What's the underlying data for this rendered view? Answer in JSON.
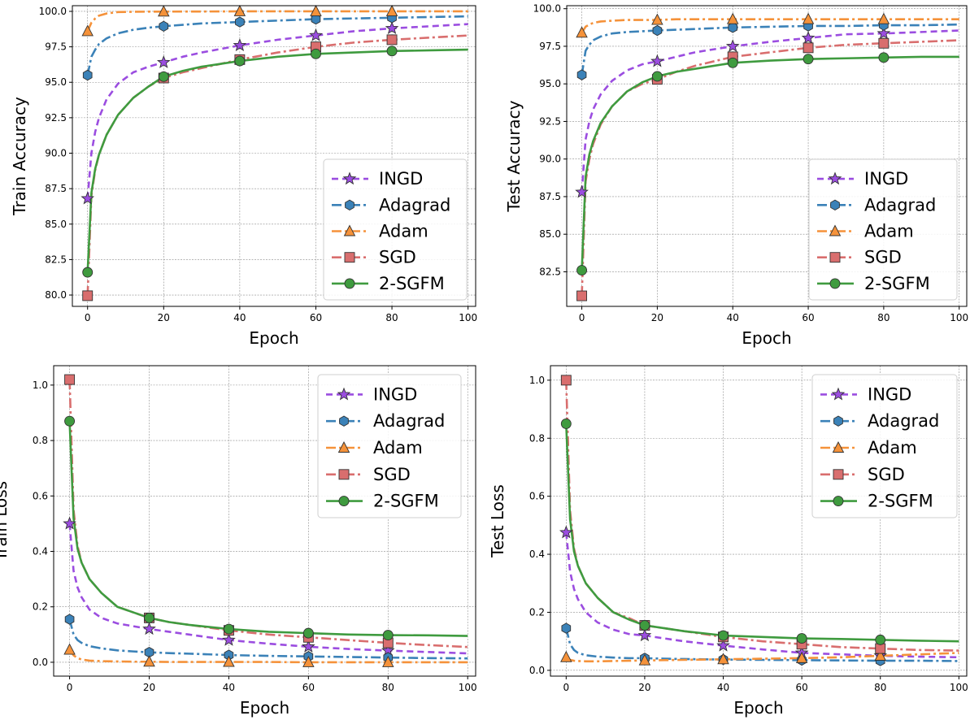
{
  "series_styles": [
    {
      "name": "INGD",
      "color": "#9b4de0",
      "dash": "8,5",
      "marker": "star"
    },
    {
      "name": "Adagrad",
      "color": "#3b82b8",
      "dash": "12,4,3,4",
      "marker": "hexagon"
    },
    {
      "name": "Adam",
      "color": "#f5923a",
      "dash": "12,4,3,4",
      "marker": "triangle"
    },
    {
      "name": "SGD",
      "color": "#d96e6e",
      "dash": "12,4,3,4",
      "marker": "square"
    },
    {
      "name": "2-SGFM",
      "color": "#3f9b3f",
      "dash": "",
      "marker": "circle"
    }
  ],
  "chart_data": [
    {
      "type": "line",
      "xlabel": "Epoch",
      "ylabel": "Train Accuracy",
      "xlim": [
        -4,
        102
      ],
      "ylim": [
        79.2,
        100.4
      ],
      "xticks": [
        0,
        20,
        40,
        60,
        80,
        100
      ],
      "yticks": [
        80.0,
        82.5,
        85.0,
        87.5,
        90.0,
        92.5,
        95.0,
        97.5,
        100.0
      ],
      "tick_decimals": 1,
      "grid": true,
      "legend": "bottom-right",
      "x": [
        0,
        1,
        2,
        3,
        5,
        8,
        12,
        16,
        20,
        25,
        30,
        40,
        50,
        60,
        70,
        80,
        90,
        100
      ],
      "markers_x": [
        0,
        20,
        40,
        60,
        80
      ],
      "series": [
        {
          "name": "INGD",
          "values": [
            86.8,
            90.0,
            91.5,
            92.5,
            93.8,
            94.9,
            95.7,
            96.1,
            96.4,
            96.8,
            97.1,
            97.6,
            98.0,
            98.3,
            98.6,
            98.8,
            98.95,
            99.1
          ]
        },
        {
          "name": "Adagrad",
          "values": [
            95.5,
            96.8,
            97.3,
            97.7,
            98.1,
            98.45,
            98.7,
            98.85,
            98.95,
            99.05,
            99.15,
            99.25,
            99.35,
            99.45,
            99.5,
            99.55,
            99.6,
            99.65
          ]
        },
        {
          "name": "Adam",
          "values": [
            98.6,
            99.2,
            99.5,
            99.7,
            99.85,
            99.95,
            99.97,
            99.98,
            99.98,
            99.99,
            99.99,
            100.0,
            100.0,
            100.0,
            100.0,
            100.0,
            100.0,
            100.0
          ]
        },
        {
          "name": "SGD",
          "values": [
            79.95,
            87.0,
            88.8,
            89.9,
            91.3,
            92.7,
            93.9,
            94.7,
            95.3,
            95.7,
            96.0,
            96.6,
            97.1,
            97.5,
            97.8,
            98.0,
            98.15,
            98.3
          ]
        },
        {
          "name": "2-SGFM",
          "values": [
            81.6,
            87.2,
            88.9,
            89.9,
            91.3,
            92.7,
            93.9,
            94.7,
            95.4,
            95.8,
            96.1,
            96.5,
            96.8,
            97.0,
            97.1,
            97.2,
            97.25,
            97.3
          ]
        }
      ]
    },
    {
      "type": "line",
      "xlabel": "Epoch",
      "ylabel": "Test Accuracy",
      "xlim": [
        -4,
        102
      ],
      "ylim": [
        80.2,
        100.2
      ],
      "xticks": [
        0,
        20,
        40,
        60,
        80,
        100
      ],
      "yticks": [
        82.5,
        85.0,
        87.5,
        90.0,
        92.5,
        95.0,
        97.5,
        100.0
      ],
      "tick_decimals": 1,
      "grid": true,
      "legend": "bottom-right",
      "x": [
        0,
        1,
        2,
        3,
        5,
        8,
        12,
        16,
        20,
        25,
        30,
        40,
        50,
        60,
        70,
        80,
        90,
        100
      ],
      "markers_x": [
        0,
        20,
        40,
        60,
        80
      ],
      "series": [
        {
          "name": "INGD",
          "values": [
            87.8,
            91.3,
            92.5,
            93.3,
            94.3,
            95.2,
            95.9,
            96.3,
            96.5,
            96.8,
            97.1,
            97.5,
            97.8,
            98.05,
            98.3,
            98.35,
            98.45,
            98.55
          ]
        },
        {
          "name": "Adagrad",
          "values": [
            95.6,
            97.2,
            97.6,
            97.9,
            98.15,
            98.35,
            98.45,
            98.5,
            98.55,
            98.6,
            98.65,
            98.75,
            98.8,
            98.85,
            98.85,
            98.9,
            98.9,
            98.95
          ]
        },
        {
          "name": "Adam",
          "values": [
            98.4,
            98.8,
            98.95,
            99.05,
            99.15,
            99.2,
            99.25,
            99.25,
            99.25,
            99.3,
            99.3,
            99.3,
            99.3,
            99.3,
            99.3,
            99.3,
            99.3,
            99.3
          ]
        },
        {
          "name": "SGD",
          "values": [
            80.9,
            88.5,
            90.0,
            91.0,
            92.3,
            93.5,
            94.5,
            95.0,
            95.3,
            95.8,
            96.2,
            96.8,
            97.1,
            97.4,
            97.6,
            97.7,
            97.8,
            97.9
          ]
        },
        {
          "name": "2-SGFM",
          "values": [
            82.6,
            88.8,
            90.3,
            91.2,
            92.4,
            93.5,
            94.5,
            95.1,
            95.5,
            95.8,
            96.0,
            96.4,
            96.55,
            96.65,
            96.7,
            96.75,
            96.8,
            96.8
          ]
        }
      ]
    },
    {
      "type": "line",
      "xlabel": "Epoch",
      "ylabel": "Train Loss",
      "xlim": [
        -4,
        102
      ],
      "ylim": [
        -0.05,
        1.07
      ],
      "xticks": [
        0,
        20,
        40,
        60,
        80,
        100
      ],
      "yticks": [
        0.0,
        0.2,
        0.4,
        0.6,
        0.8,
        1.0
      ],
      "tick_decimals": 1,
      "grid": true,
      "legend": "top-right",
      "x": [
        0,
        1,
        2,
        3,
        5,
        8,
        12,
        16,
        20,
        25,
        30,
        40,
        50,
        60,
        70,
        80,
        90,
        100
      ],
      "markers_x": [
        0,
        20,
        40,
        60,
        80
      ],
      "series": [
        {
          "name": "INGD",
          "values": [
            0.5,
            0.33,
            0.27,
            0.235,
            0.19,
            0.16,
            0.14,
            0.13,
            0.12,
            0.11,
            0.1,
            0.08,
            0.067,
            0.056,
            0.048,
            0.042,
            0.037,
            0.032
          ]
        },
        {
          "name": "Adagrad",
          "values": [
            0.155,
            0.1,
            0.08,
            0.07,
            0.058,
            0.05,
            0.043,
            0.039,
            0.036,
            0.033,
            0.031,
            0.026,
            0.023,
            0.021,
            0.019,
            0.017,
            0.015,
            0.014
          ]
        },
        {
          "name": "Adam",
          "values": [
            0.045,
            0.025,
            0.015,
            0.01,
            0.006,
            0.004,
            0.003,
            0.002,
            0.002,
            0.001,
            0.001,
            0.001,
            0.001,
            0.0,
            0.0,
            0.0,
            0.0,
            0.0
          ]
        },
        {
          "name": "SGD",
          "values": [
            1.02,
            0.55,
            0.42,
            0.36,
            0.3,
            0.25,
            0.2,
            0.18,
            0.16,
            0.145,
            0.135,
            0.115,
            0.1,
            0.09,
            0.08,
            0.07,
            0.062,
            0.055
          ]
        },
        {
          "name": "2-SGFM",
          "values": [
            0.87,
            0.52,
            0.41,
            0.36,
            0.3,
            0.25,
            0.2,
            0.18,
            0.16,
            0.145,
            0.135,
            0.12,
            0.11,
            0.105,
            0.1,
            0.098,
            0.097,
            0.095
          ]
        }
      ]
    },
    {
      "type": "line",
      "xlabel": "Epoch",
      "ylabel": "Test Loss",
      "xlim": [
        -4,
        102
      ],
      "ylim": [
        -0.02,
        1.05
      ],
      "xticks": [
        0,
        20,
        40,
        60,
        80,
        100
      ],
      "yticks": [
        0.0,
        0.2,
        0.4,
        0.6,
        0.8,
        1.0
      ],
      "tick_decimals": 1,
      "grid": true,
      "legend": "top-right",
      "x": [
        0,
        1,
        2,
        3,
        5,
        8,
        12,
        16,
        20,
        25,
        30,
        40,
        50,
        60,
        70,
        80,
        90,
        100
      ],
      "markers_x": [
        0,
        20,
        40,
        60,
        80
      ],
      "series": [
        {
          "name": "INGD",
          "values": [
            0.475,
            0.34,
            0.28,
            0.245,
            0.2,
            0.165,
            0.14,
            0.125,
            0.12,
            0.11,
            0.1,
            0.085,
            0.072,
            0.06,
            0.055,
            0.05,
            0.047,
            0.045
          ]
        },
        {
          "name": "Adagrad",
          "values": [
            0.145,
            0.09,
            0.07,
            0.06,
            0.052,
            0.047,
            0.044,
            0.042,
            0.042,
            0.04,
            0.039,
            0.037,
            0.036,
            0.035,
            0.034,
            0.033,
            0.033,
            0.032
          ]
        },
        {
          "name": "Adam",
          "values": [
            0.045,
            0.036,
            0.033,
            0.032,
            0.031,
            0.031,
            0.032,
            0.033,
            0.034,
            0.035,
            0.036,
            0.038,
            0.04,
            0.042,
            0.045,
            0.05,
            0.055,
            0.06
          ]
        },
        {
          "name": "SGD",
          "values": [
            1.0,
            0.55,
            0.42,
            0.36,
            0.3,
            0.25,
            0.2,
            0.18,
            0.155,
            0.145,
            0.135,
            0.115,
            0.1,
            0.09,
            0.08,
            0.075,
            0.07,
            0.068
          ]
        },
        {
          "name": "2-SGFM",
          "values": [
            0.85,
            0.52,
            0.41,
            0.36,
            0.3,
            0.25,
            0.2,
            0.175,
            0.155,
            0.145,
            0.135,
            0.12,
            0.115,
            0.11,
            0.108,
            0.105,
            0.102,
            0.1
          ]
        }
      ]
    }
  ]
}
